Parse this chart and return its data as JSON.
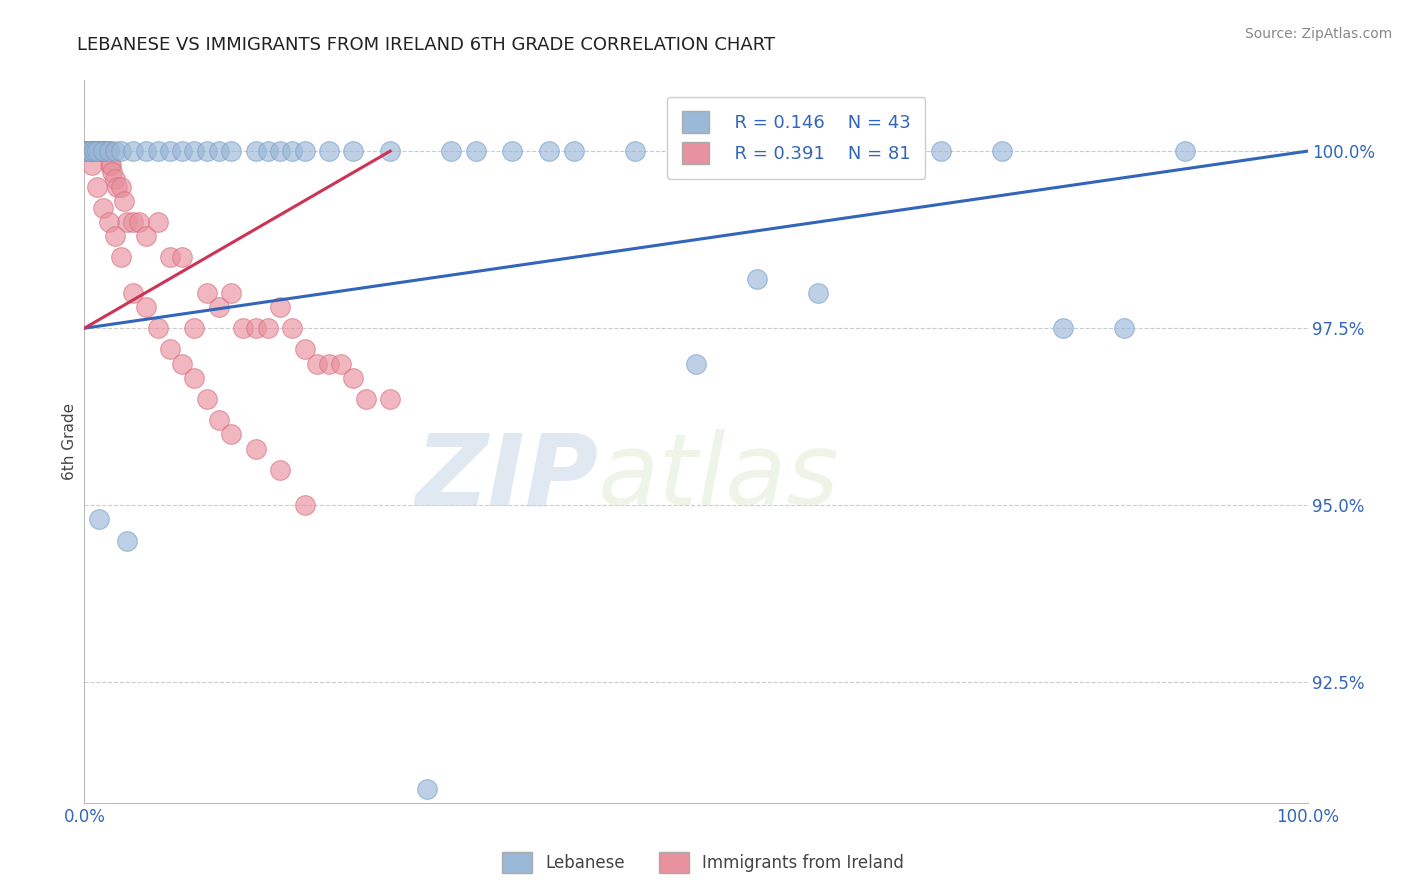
{
  "title": "LEBANESE VS IMMIGRANTS FROM IRELAND 6TH GRADE CORRELATION CHART",
  "source": "Source: ZipAtlas.com",
  "ylabel": "6th Grade",
  "xlim": [
    0,
    100
  ],
  "ylim": [
    90.8,
    101.0
  ],
  "yticks": [
    92.5,
    95.0,
    97.5,
    100.0
  ],
  "ytick_labels": [
    "92.5%",
    "95.0%",
    "97.5%",
    "100.0%"
  ],
  "xtick_labels": [
    "0.0%",
    "100.0%"
  ],
  "xtick_pos": [
    0,
    100
  ],
  "legend_r1": "R = 0.146",
  "legend_n1": "N = 43",
  "legend_r2": "R = 0.391",
  "legend_n2": "N = 81",
  "blue_color": "#9ab8d8",
  "pink_color": "#e8919f",
  "blue_edge_color": "#7aa0c8",
  "pink_edge_color": "#d87080",
  "blue_trend_color": "#3366bb",
  "pink_trend_color": "#cc3355",
  "blue_scatter_x": [
    0.3,
    0.5,
    0.8,
    1.0,
    1.5,
    2.0,
    2.5,
    3.0,
    4.0,
    5.0,
    6.0,
    7.0,
    8.0,
    9.0,
    10.0,
    11.0,
    12.0,
    14.0,
    15.0,
    16.0,
    17.0,
    18.0,
    20.0,
    22.0,
    25.0,
    30.0,
    32.0,
    35.0,
    38.0,
    40.0,
    45.0,
    50.0,
    55.0,
    60.0,
    65.0,
    70.0,
    75.0,
    80.0,
    85.0,
    90.0,
    1.2,
    3.5,
    28.0
  ],
  "blue_scatter_y": [
    100.0,
    100.0,
    100.0,
    100.0,
    100.0,
    100.0,
    100.0,
    100.0,
    100.0,
    100.0,
    100.0,
    100.0,
    100.0,
    100.0,
    100.0,
    100.0,
    100.0,
    100.0,
    100.0,
    100.0,
    100.0,
    100.0,
    100.0,
    100.0,
    100.0,
    100.0,
    100.0,
    100.0,
    100.0,
    100.0,
    100.0,
    97.0,
    98.2,
    98.0,
    100.0,
    100.0,
    100.0,
    97.5,
    97.5,
    100.0,
    94.8,
    94.5,
    91.0
  ],
  "pink_scatter_x": [
    0.1,
    0.2,
    0.2,
    0.3,
    0.3,
    0.4,
    0.4,
    0.5,
    0.5,
    0.5,
    0.6,
    0.6,
    0.7,
    0.7,
    0.8,
    0.8,
    0.9,
    1.0,
    1.0,
    1.0,
    1.1,
    1.2,
    1.3,
    1.4,
    1.5,
    1.5,
    1.6,
    1.7,
    1.8,
    1.9,
    2.0,
    2.0,
    2.1,
    2.2,
    2.3,
    2.5,
    2.7,
    3.0,
    3.2,
    3.5,
    4.0,
    4.5,
    5.0,
    6.0,
    7.0,
    8.0,
    9.0,
    10.0,
    11.0,
    12.0,
    13.0,
    14.0,
    15.0,
    16.0,
    17.0,
    18.0,
    19.0,
    20.0,
    21.0,
    22.0,
    23.0,
    0.3,
    0.6,
    1.0,
    1.5,
    2.0,
    2.5,
    3.0,
    4.0,
    5.0,
    6.0,
    7.0,
    8.0,
    9.0,
    10.0,
    11.0,
    12.0,
    14.0,
    16.0,
    18.0,
    25.0
  ],
  "pink_scatter_y": [
    100.0,
    100.0,
    100.0,
    100.0,
    100.0,
    100.0,
    100.0,
    100.0,
    100.0,
    100.0,
    100.0,
    100.0,
    100.0,
    100.0,
    100.0,
    100.0,
    100.0,
    100.0,
    100.0,
    100.0,
    100.0,
    100.0,
    100.0,
    100.0,
    100.0,
    100.0,
    100.0,
    100.0,
    100.0,
    100.0,
    100.0,
    100.0,
    99.8,
    99.8,
    99.7,
    99.6,
    99.5,
    99.5,
    99.3,
    99.0,
    99.0,
    99.0,
    98.8,
    99.0,
    98.5,
    98.5,
    97.5,
    98.0,
    97.8,
    98.0,
    97.5,
    97.5,
    97.5,
    97.8,
    97.5,
    97.2,
    97.0,
    97.0,
    97.0,
    96.8,
    96.5,
    100.0,
    99.8,
    99.5,
    99.2,
    99.0,
    98.8,
    98.5,
    98.0,
    97.8,
    97.5,
    97.2,
    97.0,
    96.8,
    96.5,
    96.2,
    96.0,
    95.8,
    95.5,
    95.0,
    96.5
  ],
  "blue_trend_x": [
    0,
    100
  ],
  "blue_trend_y": [
    97.5,
    100.0
  ],
  "pink_trend_x": [
    0,
    25
  ],
  "pink_trend_y": [
    97.5,
    100.0
  ],
  "watermark_zip": "ZIP",
  "watermark_atlas": "atlas",
  "background_color": "#ffffff",
  "grid_color": "#cccccc",
  "bottom_legend_labels": [
    "Lebanese",
    "Immigrants from Ireland"
  ]
}
